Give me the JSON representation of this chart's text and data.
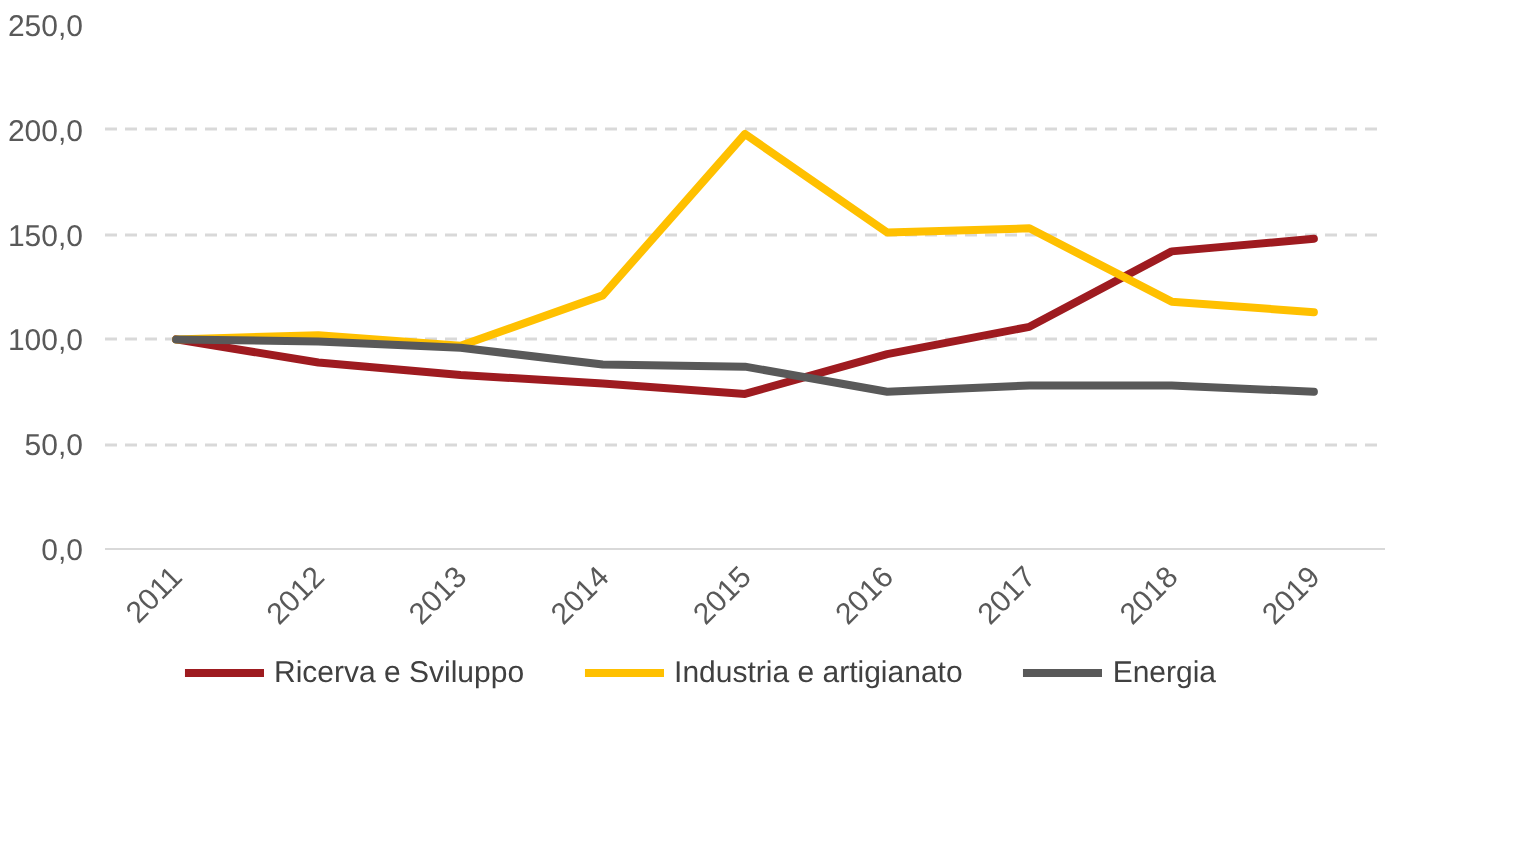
{
  "chart_data": {
    "type": "line",
    "categories": [
      "2011",
      "2012",
      "2013",
      "2014",
      "2015",
      "2016",
      "2017",
      "2018",
      "2019"
    ],
    "series": [
      {
        "name": "Ricerva e Sviluppo",
        "color": "#9e1b20",
        "values": [
          100,
          89,
          83,
          79,
          74,
          93,
          106,
          142,
          148
        ]
      },
      {
        "name": "Industria e artigianato",
        "color": "#ffc000",
        "values": [
          100,
          102,
          97,
          121,
          198,
          151,
          153,
          118,
          113
        ]
      },
      {
        "name": "Energia",
        "color": "#595959",
        "values": [
          100,
          99,
          96,
          88,
          87,
          75,
          78,
          78,
          75
        ]
      }
    ],
    "ylim": [
      0,
      250
    ],
    "yticks": [
      {
        "value": 0,
        "label": "0,0"
      },
      {
        "value": 50,
        "label": "50,0"
      },
      {
        "value": 100,
        "label": "100,0"
      },
      {
        "value": 150,
        "label": "150,0"
      },
      {
        "value": 200,
        "label": "200,0"
      },
      {
        "value": 250,
        "label": "250,0"
      }
    ],
    "grid": "y",
    "legend": "bottom",
    "marker": "none",
    "line_style": "solid"
  }
}
